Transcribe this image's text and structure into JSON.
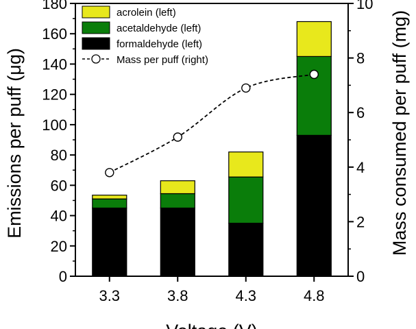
{
  "chart_data": {
    "type": "bar",
    "stacked": true,
    "title": "",
    "xlabel": "Voltage (V)",
    "ylabel": "Emissions per puff (μg)",
    "y2label": "Mass consumed per puff (mg)",
    "categories": [
      "3.3",
      "3.8",
      "4.3",
      "4.8"
    ],
    "ylim": [
      0,
      180
    ],
    "y2lim": [
      0,
      10
    ],
    "yticks": [
      0,
      20,
      40,
      60,
      80,
      100,
      120,
      140,
      160,
      180
    ],
    "y2ticks": [
      0,
      2,
      4,
      6,
      8,
      10
    ],
    "legend_position": "top-left",
    "series": [
      {
        "name": "formaldehyde (left)",
        "axis": "left",
        "color": "#000000",
        "values": [
          45,
          45,
          35,
          93
        ]
      },
      {
        "name": "acetaldehyde (left)",
        "axis": "left",
        "color": "#0a7d0a",
        "values": [
          6,
          9.5,
          30.5,
          52
        ]
      },
      {
        "name": "acrolein (left)",
        "axis": "left",
        "color": "#e8e81c",
        "values": [
          2.5,
          8.5,
          16.5,
          23
        ]
      }
    ],
    "line_series": {
      "name": "Mass per puff (right)",
      "axis": "right",
      "style": "dashed-open-circle",
      "values": [
        3.8,
        5.1,
        6.9,
        7.4
      ]
    },
    "legend_order": [
      "acrolein (left)",
      "acetaldehyde (left)",
      "formaldehyde (left)",
      "Mass per puff (right)"
    ]
  }
}
